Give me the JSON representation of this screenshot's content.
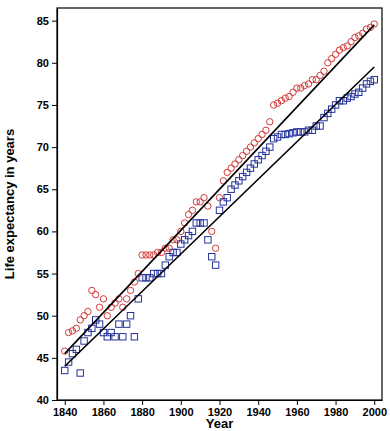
{
  "chart_data": {
    "type": "scatter",
    "x_label": "Year",
    "y_label": "Life expectancy in years",
    "x": [
      1840,
      1842,
      1844,
      1846,
      1848,
      1850,
      1852,
      1854,
      1856,
      1858,
      1860,
      1862,
      1864,
      1866,
      1868,
      1870,
      1872,
      1874,
      1876,
      1878,
      1880,
      1882,
      1884,
      1886,
      1888,
      1890,
      1892,
      1894,
      1896,
      1898,
      1900,
      1902,
      1904,
      1906,
      1908,
      1910,
      1912,
      1914,
      1916,
      1918,
      1920,
      1922,
      1924,
      1926,
      1928,
      1930,
      1932,
      1934,
      1936,
      1938,
      1940,
      1942,
      1944,
      1946,
      1948,
      1950,
      1952,
      1954,
      1956,
      1958,
      1960,
      1962,
      1964,
      1966,
      1968,
      1970,
      1972,
      1974,
      1976,
      1978,
      1980,
      1982,
      1984,
      1986,
      1988,
      1990,
      1992,
      1994,
      1996,
      1998,
      2000
    ],
    "series": [
      {
        "type": "scatter",
        "marker": "circle",
        "color": "#d23a3a",
        "values": [
          45.8,
          48,
          48.2,
          48.5,
          49.5,
          50,
          50.5,
          53,
          52.5,
          51,
          52,
          50,
          51,
          51.5,
          52,
          51,
          52,
          53,
          54,
          55,
          57.2,
          57.2,
          57.2,
          57.2,
          57.5,
          57.5,
          58,
          58,
          59,
          59,
          60,
          61,
          62,
          62.5,
          63.5,
          63.5,
          64,
          63,
          60,
          58,
          64,
          66,
          67,
          67.5,
          68,
          68.5,
          69,
          69.5,
          70,
          70.5,
          71,
          71.5,
          72,
          73,
          75,
          75.2,
          75.5,
          75.8,
          76,
          76.5,
          77,
          77,
          77.3,
          77.5,
          78,
          78,
          78.5,
          79,
          80,
          80.5,
          81,
          81.5,
          81.8,
          82,
          82.5,
          83,
          83.2,
          83.5,
          84,
          84.2,
          84.6
        ]
      },
      {
        "type": "scatter",
        "marker": "square",
        "color": "#25319a",
        "values": [
          43.5,
          44.5,
          45.5,
          46,
          43.2,
          47,
          48,
          48.5,
          49.5,
          49,
          48,
          47.5,
          48,
          47.5,
          49,
          47.5,
          49,
          50,
          47.5,
          52,
          54.5,
          54.5,
          54.5,
          55,
          55,
          55,
          56,
          57,
          57.5,
          57.5,
          58.5,
          59,
          59.5,
          60,
          61,
          61,
          61,
          59,
          57,
          56,
          62.5,
          63.5,
          64,
          65,
          65.5,
          66,
          66.5,
          67,
          67.5,
          68,
          68.5,
          69,
          69.5,
          70,
          71,
          71.2,
          71.5,
          71.5,
          71.6,
          71.7,
          71.8,
          71.8,
          71.8,
          72,
          72,
          72.5,
          72.5,
          73.5,
          74,
          74.5,
          75,
          75.5,
          75.5,
          75.8,
          76,
          76.3,
          76.5,
          77,
          77.5,
          77.8,
          78
        ]
      },
      {
        "type": "line",
        "line_style": "solid",
        "color": "#000000",
        "x": [
          1840,
          2000
        ],
        "values": [
          45.5,
          84.5
        ]
      },
      {
        "type": "line",
        "line_style": "solid",
        "color": "#000000",
        "x": [
          1840,
          2000
        ],
        "values": [
          44.0,
          79.5
        ]
      }
    ],
    "xlim": [
      1836,
      2004
    ],
    "ylim": [
      40,
      86.5
    ],
    "xticks": [
      1840,
      1860,
      1880,
      1900,
      1920,
      1940,
      1960,
      1980,
      2000
    ],
    "yticks": [
      40,
      45,
      50,
      55,
      60,
      65,
      70,
      75,
      80,
      85
    ],
    "grid": false
  }
}
